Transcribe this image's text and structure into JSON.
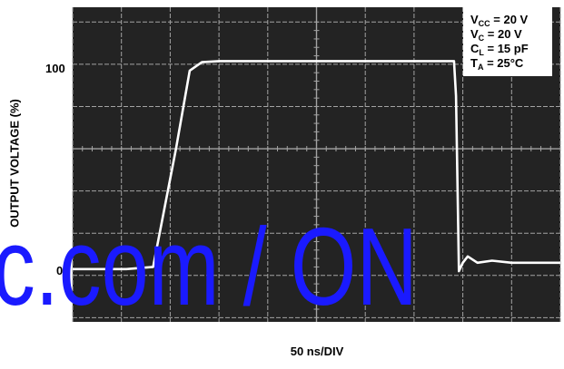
{
  "chart_data": {
    "type": "line",
    "title": "",
    "xlabel": "50 ns/DIV",
    "ylabel": "OUTPUT VOLTAGE (%)",
    "ylim": [
      -22,
      127
    ],
    "xlim": [
      0,
      10
    ],
    "grid": true,
    "yticks": [
      "0",
      "100"
    ],
    "legend_position": "top-right",
    "conditions": [
      {
        "base": "V",
        "sub": "CC",
        "rest": " = 20 V"
      },
      {
        "base": "V",
        "sub": "C",
        "rest": " = 20 V"
      },
      {
        "base": "C",
        "sub": "L",
        "rest": " = 15 pF"
      },
      {
        "base": "T",
        "sub": "A",
        "rest": " = 25°C"
      }
    ],
    "series": [
      {
        "x": [
          0,
          1.1,
          1.65,
          2.12,
          2.4,
          2.65,
          3.0,
          5.0,
          7.0,
          7.82,
          7.86,
          7.92,
          8.0,
          8.1,
          8.3,
          8.6,
          9.0,
          10.0
        ],
        "y": [
          3,
          3,
          4,
          60,
          97,
          101,
          101.5,
          101.5,
          101.5,
          101.5,
          85,
          2,
          6,
          9,
          6,
          7,
          6,
          6
        ]
      }
    ],
    "colors": {
      "plot_bg": "#232323",
      "grid": "#a3a3a3",
      "trace": "#ffffff"
    }
  },
  "watermark": {
    "text": "c.com / ON",
    "color": "#1a1aff"
  }
}
